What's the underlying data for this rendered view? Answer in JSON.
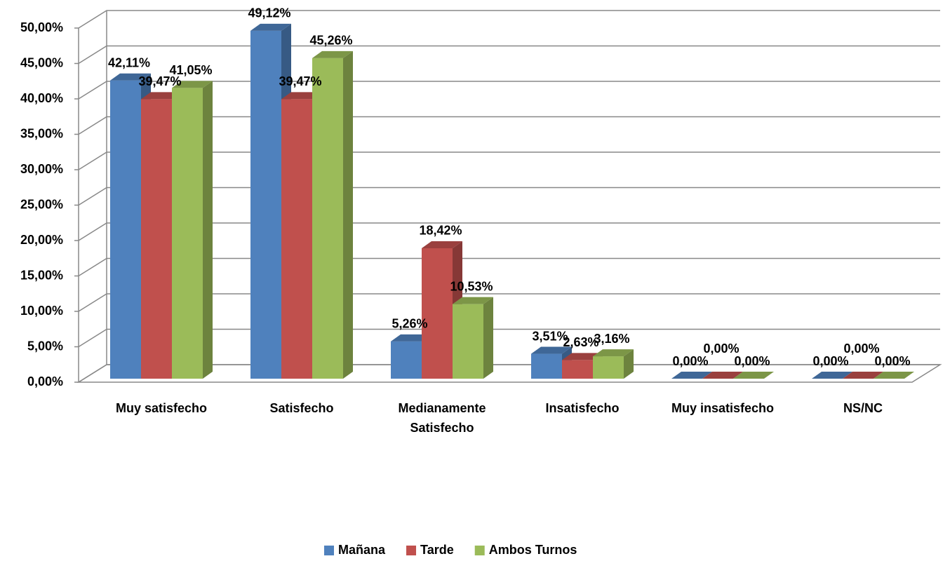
{
  "chart_data": {
    "type": "bar3d",
    "categories": [
      "Muy satisfecho",
      "Satisfecho",
      "Medianamente Satisfecho",
      "Insatisfecho",
      "Muy insatisfecho",
      "NS/NC"
    ],
    "series": [
      {
        "name": "Mañana",
        "color": "#4f81bd",
        "values": [
          42.11,
          49.12,
          5.26,
          3.51,
          0,
          0
        ],
        "value_labels": [
          "42,11%",
          "49,12%",
          "5,26%",
          "3,51%",
          "0,00%",
          "0,00%"
        ]
      },
      {
        "name": "Tarde",
        "color": "#c0504d",
        "values": [
          39.47,
          39.47,
          18.42,
          2.63,
          0,
          0
        ],
        "value_labels": [
          "39,47%",
          "39,47%",
          "18,42%",
          "2,63%",
          "0,00%",
          "0,00%"
        ]
      },
      {
        "name": "Ambos Turnos",
        "color": "#9bbb59",
        "values": [
          41.05,
          45.26,
          10.53,
          3.16,
          0,
          0
        ],
        "value_labels": [
          "41,05%",
          "45,26%",
          "10,53%",
          "3,16%",
          "0,00%",
          "0,00%"
        ]
      }
    ],
    "ylim": [
      0,
      50
    ],
    "yticks": [
      {
        "value": 0,
        "label": "0,00%"
      },
      {
        "value": 5,
        "label": "5,00%"
      },
      {
        "value": 10,
        "label": "10,00%"
      },
      {
        "value": 15,
        "label": "15,00%"
      },
      {
        "value": 20,
        "label": "20,00%"
      },
      {
        "value": 25,
        "label": "25,00%"
      },
      {
        "value": 30,
        "label": "30,00%"
      },
      {
        "value": 35,
        "label": "35,00%"
      },
      {
        "value": 40,
        "label": "40,00%"
      },
      {
        "value": 45,
        "label": "45,00%"
      },
      {
        "value": 50,
        "label": "50,00%"
      }
    ],
    "grid": true,
    "legend": "bottom"
  }
}
